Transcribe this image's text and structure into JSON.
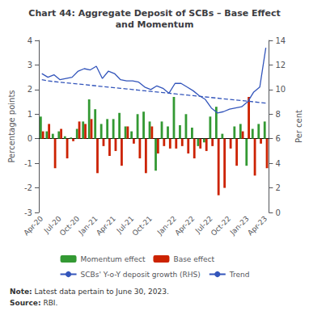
{
  "chart_data": {
    "type": "bar",
    "title": "Chart 44: Aggregate Deposit of SCBs – Base Effect\nand Momentum",
    "ylabel": "Percentage points",
    "y2label": "Per cent",
    "annotations": [
      "Note: Latest data pertain to June 30, 2023.",
      "Source: RBI."
    ],
    "categories": [
      "Apr-20",
      null,
      null,
      "Jul-20",
      null,
      null,
      "Oct-20",
      null,
      null,
      "Jan-21",
      null,
      null,
      "Apr-21",
      null,
      null,
      "Jul-21",
      null,
      null,
      "Oct-21",
      null,
      null,
      null,
      "Jan-22",
      null,
      null,
      "Apr-22",
      null,
      null,
      "Jul-22",
      null,
      null,
      "Oct-22",
      null,
      null,
      "Jan-23",
      null,
      null,
      "Apr-23"
    ],
    "series": [
      {
        "name": "Momentum effect",
        "type": "bar",
        "color": "#339933",
        "values": [
          0.9,
          0.3,
          0.2,
          0.3,
          0.1,
          0.05,
          0.4,
          0.7,
          1.6,
          1.2,
          0.6,
          0.8,
          0.8,
          1.05,
          0.5,
          0.3,
          1.0,
          1.1,
          0.7,
          -1.3,
          0.7,
          0.5,
          1.7,
          0.55,
          1.0,
          0.45,
          -0.3,
          -0.15,
          0.9,
          1.3,
          0.2,
          0.0,
          0.5,
          0.6,
          -1.1,
          0.4,
          0.6,
          0.7
        ]
      },
      {
        "name": "Base effect",
        "type": "bar",
        "color": "#cc2200",
        "values": [
          0.3,
          0.6,
          -1.2,
          0.4,
          -0.8,
          -0.1,
          0.7,
          0.6,
          0.8,
          -1.4,
          -0.3,
          -0.7,
          -0.5,
          -1.1,
          0.5,
          -0.2,
          -0.8,
          -1.4,
          0.5,
          -0.6,
          -0.3,
          -0.4,
          -0.4,
          -0.3,
          -0.6,
          -0.8,
          -0.4,
          -0.5,
          -0.3,
          -2.3,
          -2.0,
          -0.4,
          -1.1,
          0.3,
          1.7,
          -1.5,
          -0.2,
          -1.2
        ]
      },
      {
        "name": "SCBs' Y-o-Y deposit growth (RHS)",
        "type": "line",
        "axis": "y2",
        "color": "#3355bb",
        "line_style": "solid",
        "values": [
          11.3,
          11.0,
          11.2,
          10.8,
          10.9,
          11.0,
          11.5,
          11.7,
          11.6,
          11.9,
          10.9,
          11.5,
          11.3,
          10.8,
          10.7,
          10.7,
          10.6,
          10.2,
          10.0,
          10.3,
          10.1,
          9.7,
          10.5,
          10.5,
          10.2,
          9.9,
          9.5,
          9.2,
          8.5,
          8.1,
          8.2,
          8.4,
          8.5,
          8.6,
          9.0,
          9.8,
          10.2,
          13.4
        ]
      },
      {
        "name": "Trend",
        "type": "line",
        "axis": "y2",
        "color": "#3355bb",
        "line_style": "dashed",
        "values": [
          10.8,
          10.7,
          10.65,
          10.6,
          10.55,
          10.5,
          10.45,
          10.4,
          10.35,
          10.3,
          10.25,
          10.2,
          10.15,
          10.1,
          10.05,
          10.0,
          9.95,
          9.9,
          9.85,
          9.8,
          9.75,
          9.7,
          9.65,
          9.6,
          9.55,
          9.5,
          9.45,
          9.4,
          9.35,
          9.3,
          9.25,
          9.2,
          9.15,
          9.1,
          9.05,
          9.0,
          8.95,
          8.9
        ]
      }
    ],
    "ylim": [
      -3,
      4
    ],
    "yticks": [
      -3,
      -2,
      -1,
      0,
      1,
      2,
      3,
      4
    ],
    "y2lim": [
      0,
      14
    ],
    "y2ticks": [
      0,
      2,
      4,
      6,
      8,
      10,
      12,
      14
    ],
    "grid": false,
    "legend": "bottom"
  }
}
